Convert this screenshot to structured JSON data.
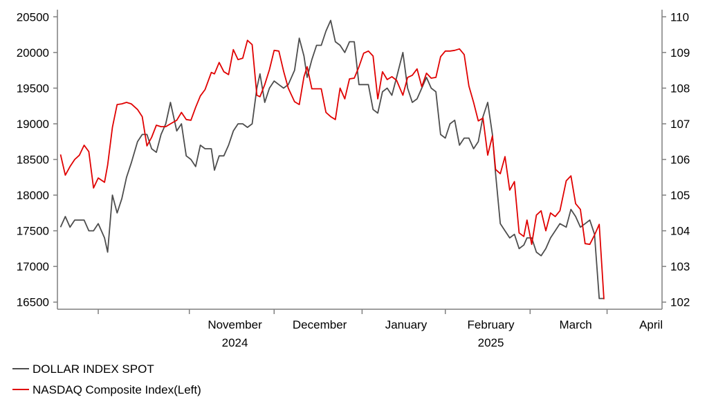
{
  "chart_data": {
    "type": "line",
    "title": "",
    "xlabel": "",
    "legend_position": "bottom-left",
    "grid": false,
    "colors": {
      "dollar": "#4d4d4d",
      "nasdaq": "#e00000"
    },
    "y_left": {
      "ylim": [
        16400,
        20600
      ],
      "ticks": [
        "16500",
        "17000",
        "17500",
        "18000",
        "18500",
        "19000",
        "19500",
        "20000",
        "20500"
      ]
    },
    "y_right": {
      "ylim": [
        101.8,
        110.2
      ],
      "ticks": [
        "102",
        "103",
        "104",
        "105",
        "106",
        "107",
        "108",
        "109",
        "110"
      ]
    },
    "x_labels": [
      {
        "text": "November",
        "text2": "2024",
        "x": 11.3
      },
      {
        "text": "December",
        "text2": "",
        "x": 16.7
      },
      {
        "text": "January",
        "text2": "",
        "x": 22.2
      },
      {
        "text": "February",
        "text2": "2025",
        "x": 27.6
      },
      {
        "text": "March",
        "text2": "",
        "x": 33
      },
      {
        "text": "April",
        "text2": "",
        "x": 37.8
      }
    ],
    "xlim": [
      0,
      38.5
    ],
    "series": [
      {
        "name": "DOLLAR INDEX SPOT",
        "axis": "right",
        "points": [
          [
            0.2,
            104.1
          ],
          [
            0.5,
            104.4
          ],
          [
            0.8,
            104.1
          ],
          [
            1.1,
            104.3
          ],
          [
            1.4,
            104.3
          ],
          [
            1.7,
            104.3
          ],
          [
            2.0,
            104.0
          ],
          [
            2.3,
            104.0
          ],
          [
            2.6,
            104.2
          ],
          [
            3.0,
            103.8
          ],
          [
            3.2,
            103.4
          ],
          [
            3.5,
            105.0
          ],
          [
            3.8,
            104.5
          ],
          [
            4.1,
            104.9
          ],
          [
            4.4,
            105.5
          ],
          [
            4.7,
            105.9
          ],
          [
            5.1,
            106.5
          ],
          [
            5.4,
            106.7
          ],
          [
            5.7,
            106.7
          ],
          [
            6.0,
            106.3
          ],
          [
            6.3,
            106.2
          ],
          [
            6.6,
            106.7
          ],
          [
            6.9,
            107.0
          ],
          [
            7.2,
            107.6
          ],
          [
            7.6,
            106.8
          ],
          [
            7.9,
            107.0
          ],
          [
            8.2,
            106.1
          ],
          [
            8.5,
            106.0
          ],
          [
            8.8,
            105.8
          ],
          [
            9.1,
            106.4
          ],
          [
            9.4,
            106.3
          ],
          [
            9.8,
            106.3
          ],
          [
            10.0,
            105.7
          ],
          [
            10.3,
            106.1
          ],
          [
            10.6,
            106.1
          ],
          [
            10.9,
            106.4
          ],
          [
            11.2,
            106.8
          ],
          [
            11.5,
            107.0
          ],
          [
            11.8,
            107.0
          ],
          [
            12.1,
            106.9
          ],
          [
            12.4,
            107.0
          ],
          [
            12.7,
            108.0
          ],
          [
            12.9,
            108.4
          ],
          [
            13.2,
            107.6
          ],
          [
            13.5,
            108.0
          ],
          [
            13.8,
            108.2
          ],
          [
            14.1,
            108.1
          ],
          [
            14.4,
            108.0
          ],
          [
            14.7,
            108.1
          ],
          [
            15.1,
            108.5
          ],
          [
            15.4,
            109.4
          ],
          [
            15.7,
            108.9
          ],
          [
            15.9,
            108.3
          ],
          [
            16.2,
            108.8
          ],
          [
            16.5,
            109.2
          ],
          [
            16.8,
            109.2
          ],
          [
            17.1,
            109.6
          ],
          [
            17.4,
            109.9
          ],
          [
            17.7,
            109.3
          ],
          [
            18.0,
            109.2
          ],
          [
            18.3,
            109.0
          ],
          [
            18.6,
            109.3
          ],
          [
            18.9,
            109.3
          ],
          [
            19.2,
            108.1
          ],
          [
            19.5,
            108.1
          ],
          [
            19.8,
            108.1
          ],
          [
            20.1,
            107.4
          ],
          [
            20.4,
            107.3
          ],
          [
            20.7,
            107.9
          ],
          [
            21.0,
            108.0
          ],
          [
            21.3,
            107.8
          ],
          [
            21.6,
            108.3
          ],
          [
            22.0,
            109.0
          ],
          [
            22.3,
            108.0
          ],
          [
            22.6,
            107.6
          ],
          [
            22.9,
            107.7
          ],
          [
            23.2,
            108.0
          ],
          [
            23.5,
            108.3
          ],
          [
            23.8,
            108.0
          ],
          [
            24.1,
            107.9
          ],
          [
            24.4,
            106.7
          ],
          [
            24.7,
            106.6
          ],
          [
            25.0,
            107.0
          ],
          [
            25.3,
            107.1
          ],
          [
            25.6,
            106.4
          ],
          [
            25.9,
            106.6
          ],
          [
            26.2,
            106.6
          ],
          [
            26.5,
            106.3
          ],
          [
            26.8,
            106.5
          ],
          [
            27.1,
            107.2
          ],
          [
            27.4,
            107.6
          ],
          [
            27.7,
            106.7
          ],
          [
            27.9,
            105.6
          ],
          [
            28.2,
            104.2
          ],
          [
            28.5,
            104.0
          ],
          [
            28.8,
            103.8
          ],
          [
            29.1,
            103.9
          ],
          [
            29.4,
            103.5
          ],
          [
            29.7,
            103.6
          ],
          [
            29.9,
            103.8
          ],
          [
            30.2,
            103.8
          ],
          [
            30.5,
            103.4
          ],
          [
            30.8,
            103.3
          ],
          [
            31.1,
            103.5
          ],
          [
            31.4,
            103.8
          ],
          [
            31.7,
            104.0
          ],
          [
            32.0,
            104.2
          ],
          [
            32.4,
            104.1
          ],
          [
            32.7,
            104.6
          ],
          [
            33.0,
            104.4
          ],
          [
            33.3,
            104.1
          ],
          [
            33.6,
            104.2
          ],
          [
            33.9,
            104.3
          ],
          [
            34.2,
            103.9
          ],
          [
            34.5,
            102.1
          ],
          [
            34.8,
            102.1
          ]
        ]
      },
      {
        "name": "NASDAQ Composite Index(Left)",
        "axis": "left",
        "points": [
          [
            0.2,
            18570
          ],
          [
            0.5,
            18280
          ],
          [
            0.8,
            18400
          ],
          [
            1.1,
            18500
          ],
          [
            1.4,
            18560
          ],
          [
            1.7,
            18700
          ],
          [
            2.0,
            18610
          ],
          [
            2.3,
            18100
          ],
          [
            2.6,
            18240
          ],
          [
            3.0,
            18180
          ],
          [
            3.2,
            18420
          ],
          [
            3.5,
            18950
          ],
          [
            3.8,
            19270
          ],
          [
            4.1,
            19280
          ],
          [
            4.4,
            19300
          ],
          [
            4.7,
            19280
          ],
          [
            5.1,
            19200
          ],
          [
            5.4,
            19100
          ],
          [
            5.7,
            18690
          ],
          [
            6.0,
            18810
          ],
          [
            6.3,
            18980
          ],
          [
            6.6,
            18960
          ],
          [
            6.9,
            18960
          ],
          [
            7.2,
            19000
          ],
          [
            7.6,
            19050
          ],
          [
            7.9,
            19160
          ],
          [
            8.2,
            19060
          ],
          [
            8.5,
            19050
          ],
          [
            8.8,
            19230
          ],
          [
            9.1,
            19390
          ],
          [
            9.4,
            19480
          ],
          [
            9.8,
            19720
          ],
          [
            10.0,
            19700
          ],
          [
            10.3,
            19860
          ],
          [
            10.6,
            19730
          ],
          [
            10.9,
            19690
          ],
          [
            11.2,
            20040
          ],
          [
            11.5,
            19900
          ],
          [
            11.8,
            19920
          ],
          [
            12.1,
            20170
          ],
          [
            12.4,
            20110
          ],
          [
            12.7,
            19400
          ],
          [
            12.9,
            19380
          ],
          [
            13.2,
            19550
          ],
          [
            13.5,
            19760
          ],
          [
            13.8,
            20030
          ],
          [
            14.1,
            20020
          ],
          [
            14.4,
            19740
          ],
          [
            14.7,
            19500
          ],
          [
            15.1,
            19310
          ],
          [
            15.4,
            19270
          ],
          [
            15.7,
            19660
          ],
          [
            15.9,
            19800
          ],
          [
            16.2,
            19490
          ],
          [
            16.5,
            19490
          ],
          [
            16.8,
            19490
          ],
          [
            17.1,
            19160
          ],
          [
            17.4,
            19100
          ],
          [
            17.7,
            19060
          ],
          [
            18.0,
            19500
          ],
          [
            18.3,
            19350
          ],
          [
            18.6,
            19630
          ],
          [
            18.9,
            19640
          ],
          [
            19.2,
            19800
          ],
          [
            19.5,
            19990
          ],
          [
            19.8,
            20020
          ],
          [
            20.1,
            19950
          ],
          [
            20.4,
            19350
          ],
          [
            20.7,
            19730
          ],
          [
            21.0,
            19620
          ],
          [
            21.3,
            19660
          ],
          [
            21.6,
            19610
          ],
          [
            22.0,
            19400
          ],
          [
            22.3,
            19650
          ],
          [
            22.6,
            19680
          ],
          [
            22.9,
            19770
          ],
          [
            23.2,
            19520
          ],
          [
            23.5,
            19710
          ],
          [
            23.8,
            19640
          ],
          [
            24.1,
            19650
          ],
          [
            24.4,
            19940
          ],
          [
            24.7,
            20020
          ],
          [
            25.0,
            20020
          ],
          [
            25.3,
            20030
          ],
          [
            25.6,
            20050
          ],
          [
            25.9,
            19970
          ],
          [
            26.2,
            19530
          ],
          [
            26.5,
            19300
          ],
          [
            26.8,
            19040
          ],
          [
            27.1,
            19080
          ],
          [
            27.4,
            18560
          ],
          [
            27.7,
            18830
          ],
          [
            27.9,
            18360
          ],
          [
            28.2,
            18300
          ],
          [
            28.5,
            18540
          ],
          [
            28.8,
            18070
          ],
          [
            29.1,
            18190
          ],
          [
            29.4,
            17470
          ],
          [
            29.7,
            17420
          ],
          [
            29.9,
            17650
          ],
          [
            30.2,
            17310
          ],
          [
            30.5,
            17720
          ],
          [
            30.8,
            17780
          ],
          [
            31.1,
            17500
          ],
          [
            31.4,
            17750
          ],
          [
            31.7,
            17700
          ],
          [
            32.0,
            17780
          ],
          [
            32.4,
            18200
          ],
          [
            32.7,
            18270
          ],
          [
            33.0,
            17880
          ],
          [
            33.3,
            17800
          ],
          [
            33.6,
            17320
          ],
          [
            33.9,
            17310
          ],
          [
            34.2,
            17440
          ],
          [
            34.5,
            17590
          ],
          [
            34.8,
            16540
          ]
        ]
      }
    ]
  },
  "legend": [
    {
      "label": "DOLLAR INDEX SPOT",
      "color": "#4d4d4d"
    },
    {
      "label": "NASDAQ Composite Index(Left)",
      "color": "#e00000"
    }
  ]
}
